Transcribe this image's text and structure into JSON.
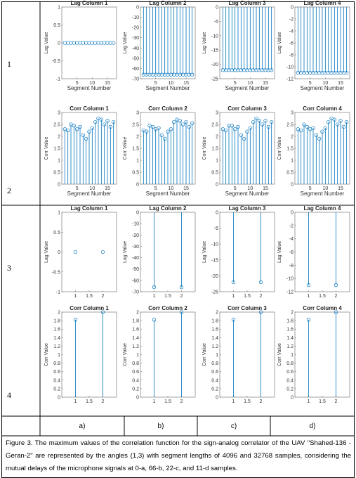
{
  "row_labels": [
    "1",
    "2",
    "3",
    "4"
  ],
  "column_labels": [
    "a)",
    "b)",
    "c)",
    "d)"
  ],
  "caption": "Figure 3. The maximum values of the correlation function for the sign-analog correlator of the UAV \"Shahed-136 - Geran-2\" are represented by the angles (1,3) with segment lengths of 4096 and 32768 samples, considering the mutual delays of the microphone signals at 0-a, 66-b, 22-c, and 11-d samples.",
  "chart_data": [
    {
      "type": "stem",
      "title": "Lag Column 1",
      "xlabel": "Segment Number",
      "ylabel": "Lag Value",
      "color": "#0072bd",
      "x": [
        1,
        2,
        3,
        4,
        5,
        6,
        7,
        8,
        9,
        10,
        11,
        12,
        13,
        14,
        15,
        16,
        17
      ],
      "values": [
        0,
        0,
        0,
        0,
        0,
        0,
        0,
        0,
        0,
        0,
        0,
        0,
        0,
        0,
        0,
        0,
        0
      ],
      "xlim": [
        0,
        18
      ],
      "xticks": [
        5,
        10,
        15
      ],
      "ylim": [
        -1,
        1
      ],
      "yticks": [
        -1,
        -0.5,
        0,
        0.5,
        1
      ]
    },
    {
      "type": "stem",
      "title": "Lag Column 2",
      "xlabel": "Segment Number",
      "ylabel": "Lag Value",
      "color": "#0072bd",
      "x": [
        1,
        2,
        3,
        4,
        5,
        6,
        7,
        8,
        9,
        10,
        11,
        12,
        13,
        14,
        15,
        16,
        17
      ],
      "values": [
        -66,
        -66,
        -66,
        -66,
        -66,
        -66,
        -66,
        -66,
        -66,
        -66,
        -66,
        -66,
        -66,
        -66,
        -66,
        -66,
        -66
      ],
      "xlim": [
        0,
        18
      ],
      "xticks": [
        5,
        10,
        15
      ],
      "ylim": [
        -70,
        0
      ],
      "yticks": [
        -70,
        -60,
        -50,
        -40,
        -30,
        -20,
        -10,
        0
      ]
    },
    {
      "type": "stem",
      "title": "Lag Column 3",
      "xlabel": "Segment Number",
      "ylabel": "Lag Value",
      "color": "#0072bd",
      "x": [
        1,
        2,
        3,
        4,
        5,
        6,
        7,
        8,
        9,
        10,
        11,
        12,
        13,
        14,
        15,
        16,
        17
      ],
      "values": [
        -22,
        -22,
        -22,
        -22,
        -22,
        -22,
        -22,
        -22,
        -22,
        -22,
        -22,
        -22,
        -22,
        -22,
        -22,
        -22,
        -22
      ],
      "xlim": [
        0,
        18
      ],
      "xticks": [
        5,
        10,
        15
      ],
      "ylim": [
        -25,
        0
      ],
      "yticks": [
        -25,
        -20,
        -15,
        -10,
        -5,
        0
      ]
    },
    {
      "type": "stem",
      "title": "Lag Column 4",
      "xlabel": "Segment Number",
      "ylabel": "Lag Value",
      "color": "#0072bd",
      "x": [
        1,
        2,
        3,
        4,
        5,
        6,
        7,
        8,
        9,
        10,
        11,
        12,
        13,
        14,
        15,
        16,
        17
      ],
      "values": [
        -11,
        -11,
        -11,
        -11,
        -11,
        -11,
        -11,
        -11,
        -11,
        -11,
        -11,
        -11,
        -11,
        -11,
        -11,
        -11,
        -11
      ],
      "xlim": [
        0,
        18
      ],
      "xticks": [
        5,
        10,
        15
      ],
      "ylim": [
        -12,
        0
      ],
      "yticks": [
        -12,
        -10,
        -8,
        -6,
        -4,
        -2,
        0
      ]
    },
    {
      "type": "stem",
      "title": "Corr Column 1",
      "xlabel": "Segment Number",
      "ylabel": "Corr Value",
      "color": "#0072bd",
      "x": [
        1,
        2,
        3,
        4,
        5,
        6,
        7,
        8,
        9,
        10,
        11,
        12,
        13,
        14,
        15,
        16,
        17
      ],
      "values": [
        2.3,
        2.25,
        2.5,
        2.45,
        2.3,
        2.4,
        2.05,
        1.9,
        2.2,
        2.35,
        2.6,
        2.75,
        2.7,
        2.5,
        2.65,
        2.4,
        2.6
      ],
      "xlim": [
        0,
        18
      ],
      "xticks": [
        5,
        10,
        15
      ],
      "ylim": [
        0,
        3
      ],
      "yticks": [
        0,
        0.5,
        1,
        1.5,
        2,
        2.5,
        3
      ]
    },
    {
      "type": "stem",
      "title": "Corr Column 2",
      "xlabel": "Segment Number",
      "ylabel": "Corr Value",
      "color": "#0072bd",
      "x": [
        1,
        2,
        3,
        4,
        5,
        6,
        7,
        8,
        9,
        10,
        11,
        12,
        13,
        14,
        15,
        16,
        17
      ],
      "values": [
        2.25,
        2.2,
        2.45,
        2.4,
        2.3,
        2.35,
        2.05,
        1.9,
        2.2,
        2.3,
        2.6,
        2.7,
        2.65,
        2.5,
        2.6,
        2.4,
        2.55
      ],
      "xlim": [
        0,
        18
      ],
      "xticks": [
        5,
        10,
        15
      ],
      "ylim": [
        0,
        3
      ],
      "yticks": [
        0,
        0.5,
        1,
        1.5,
        2,
        2.5,
        3
      ]
    },
    {
      "type": "stem",
      "title": "Corr Column 3",
      "xlabel": "Segment Number",
      "ylabel": "Corr Value",
      "color": "#0072bd",
      "x": [
        1,
        2,
        3,
        4,
        5,
        6,
        7,
        8,
        9,
        10,
        11,
        12,
        13,
        14,
        15,
        16,
        17
      ],
      "values": [
        2.3,
        2.25,
        2.45,
        2.45,
        2.3,
        2.4,
        2.05,
        1.9,
        2.2,
        2.35,
        2.6,
        2.75,
        2.65,
        2.5,
        2.65,
        2.4,
        2.6
      ],
      "xlim": [
        0,
        18
      ],
      "xticks": [
        5,
        10,
        15
      ],
      "ylim": [
        0,
        3
      ],
      "yticks": [
        0,
        0.5,
        1,
        1.5,
        2,
        2.5,
        3
      ]
    },
    {
      "type": "stem",
      "title": "Corr Column 4",
      "xlabel": "Segment Number",
      "ylabel": "Corr Value",
      "color": "#0072bd",
      "x": [
        1,
        2,
        3,
        4,
        5,
        6,
        7,
        8,
        9,
        10,
        11,
        12,
        13,
        14,
        15,
        16,
        17
      ],
      "values": [
        2.3,
        2.25,
        2.5,
        2.4,
        2.3,
        2.35,
        2.05,
        1.9,
        2.2,
        2.35,
        2.6,
        2.75,
        2.7,
        2.5,
        2.65,
        2.4,
        2.6
      ],
      "xlim": [
        0,
        18
      ],
      "xticks": [
        5,
        10,
        15
      ],
      "ylim": [
        0,
        3
      ],
      "yticks": [
        0,
        0.5,
        1,
        1.5,
        2,
        2.5,
        3
      ]
    },
    {
      "type": "stem",
      "title": "Lag Column 1",
      "ylabel": "Lag Value",
      "color": "#0072bd",
      "x": [
        1,
        2
      ],
      "values": [
        0,
        0
      ],
      "xlim": [
        0.5,
        2.5
      ],
      "xticks": [
        1,
        1.5,
        2
      ],
      "ylim": [
        -1,
        1
      ],
      "yticks": [
        -1,
        -0.5,
        0,
        0.5,
        1
      ]
    },
    {
      "type": "stem",
      "title": "Lag Column 2",
      "ylabel": "Lag Value",
      "color": "#0072bd",
      "x": [
        1,
        2
      ],
      "values": [
        -66,
        -66
      ],
      "xlim": [
        0.5,
        2.5
      ],
      "xticks": [
        1,
        1.5,
        2
      ],
      "ylim": [
        -70,
        0
      ],
      "yticks": [
        -70,
        -60,
        -50,
        -40,
        -30,
        -20,
        -10,
        0
      ]
    },
    {
      "type": "stem",
      "title": "Lag Column 3",
      "ylabel": "Lag Value",
      "color": "#0072bd",
      "x": [
        1,
        2
      ],
      "values": [
        -22,
        -22
      ],
      "xlim": [
        0.5,
        2.5
      ],
      "xticks": [
        1,
        1.5,
        2
      ],
      "ylim": [
        -25,
        0
      ],
      "yticks": [
        -25,
        -20,
        -15,
        -10,
        -5,
        0
      ]
    },
    {
      "type": "stem",
      "title": "Lag Column 4",
      "ylabel": "Lag Value",
      "color": "#0072bd",
      "x": [
        1,
        2
      ],
      "values": [
        -11,
        -11
      ],
      "xlim": [
        0.5,
        2.5
      ],
      "xticks": [
        1,
        1.5,
        2
      ],
      "ylim": [
        -12,
        0
      ],
      "yticks": [
        -12,
        -10,
        -8,
        -6,
        -4,
        -2,
        0
      ]
    },
    {
      "type": "stem",
      "title": "Corr Column 1",
      "ylabel": "Corr Value",
      "color": "#0072bd",
      "x": [
        1,
        2
      ],
      "values": [
        1.82,
        2
      ],
      "xlim": [
        0.5,
        2.5
      ],
      "xticks": [
        1,
        1.5,
        2
      ],
      "ylim": [
        0,
        2
      ],
      "yticks": [
        0,
        0.2,
        0.4,
        0.6,
        0.8,
        1,
        1.2,
        1.4,
        1.6,
        1.8,
        2
      ]
    },
    {
      "type": "stem",
      "title": "Corr Column 2",
      "ylabel": "Corr Value",
      "color": "#0072bd",
      "x": [
        1,
        2
      ],
      "values": [
        1.82,
        2
      ],
      "xlim": [
        0.5,
        2.5
      ],
      "xticks": [
        1,
        1.5,
        2
      ],
      "ylim": [
        0,
        2
      ],
      "yticks": [
        0,
        0.2,
        0.4,
        0.6,
        0.8,
        1,
        1.2,
        1.4,
        1.6,
        1.8,
        2
      ]
    },
    {
      "type": "stem",
      "title": "Corr Column 3",
      "ylabel": "Corr Value",
      "color": "#0072bd",
      "x": [
        1,
        2
      ],
      "values": [
        1.82,
        2
      ],
      "xlim": [
        0.5,
        2.5
      ],
      "xticks": [
        1,
        1.5,
        2
      ],
      "ylim": [
        0,
        2
      ],
      "yticks": [
        0,
        0.2,
        0.4,
        0.6,
        0.8,
        1,
        1.2,
        1.4,
        1.6,
        1.8,
        2
      ]
    },
    {
      "type": "stem",
      "title": "Corr Column 4",
      "ylabel": "Corr Value",
      "color": "#0072bd",
      "x": [
        1,
        2
      ],
      "values": [
        1.82,
        2
      ],
      "xlim": [
        0.5,
        2.5
      ],
      "xticks": [
        1,
        1.5,
        2
      ],
      "ylim": [
        0,
        2
      ],
      "yticks": [
        0,
        0.2,
        0.4,
        0.6,
        0.8,
        1,
        1.2,
        1.4,
        1.6,
        1.8,
        2
      ]
    }
  ]
}
